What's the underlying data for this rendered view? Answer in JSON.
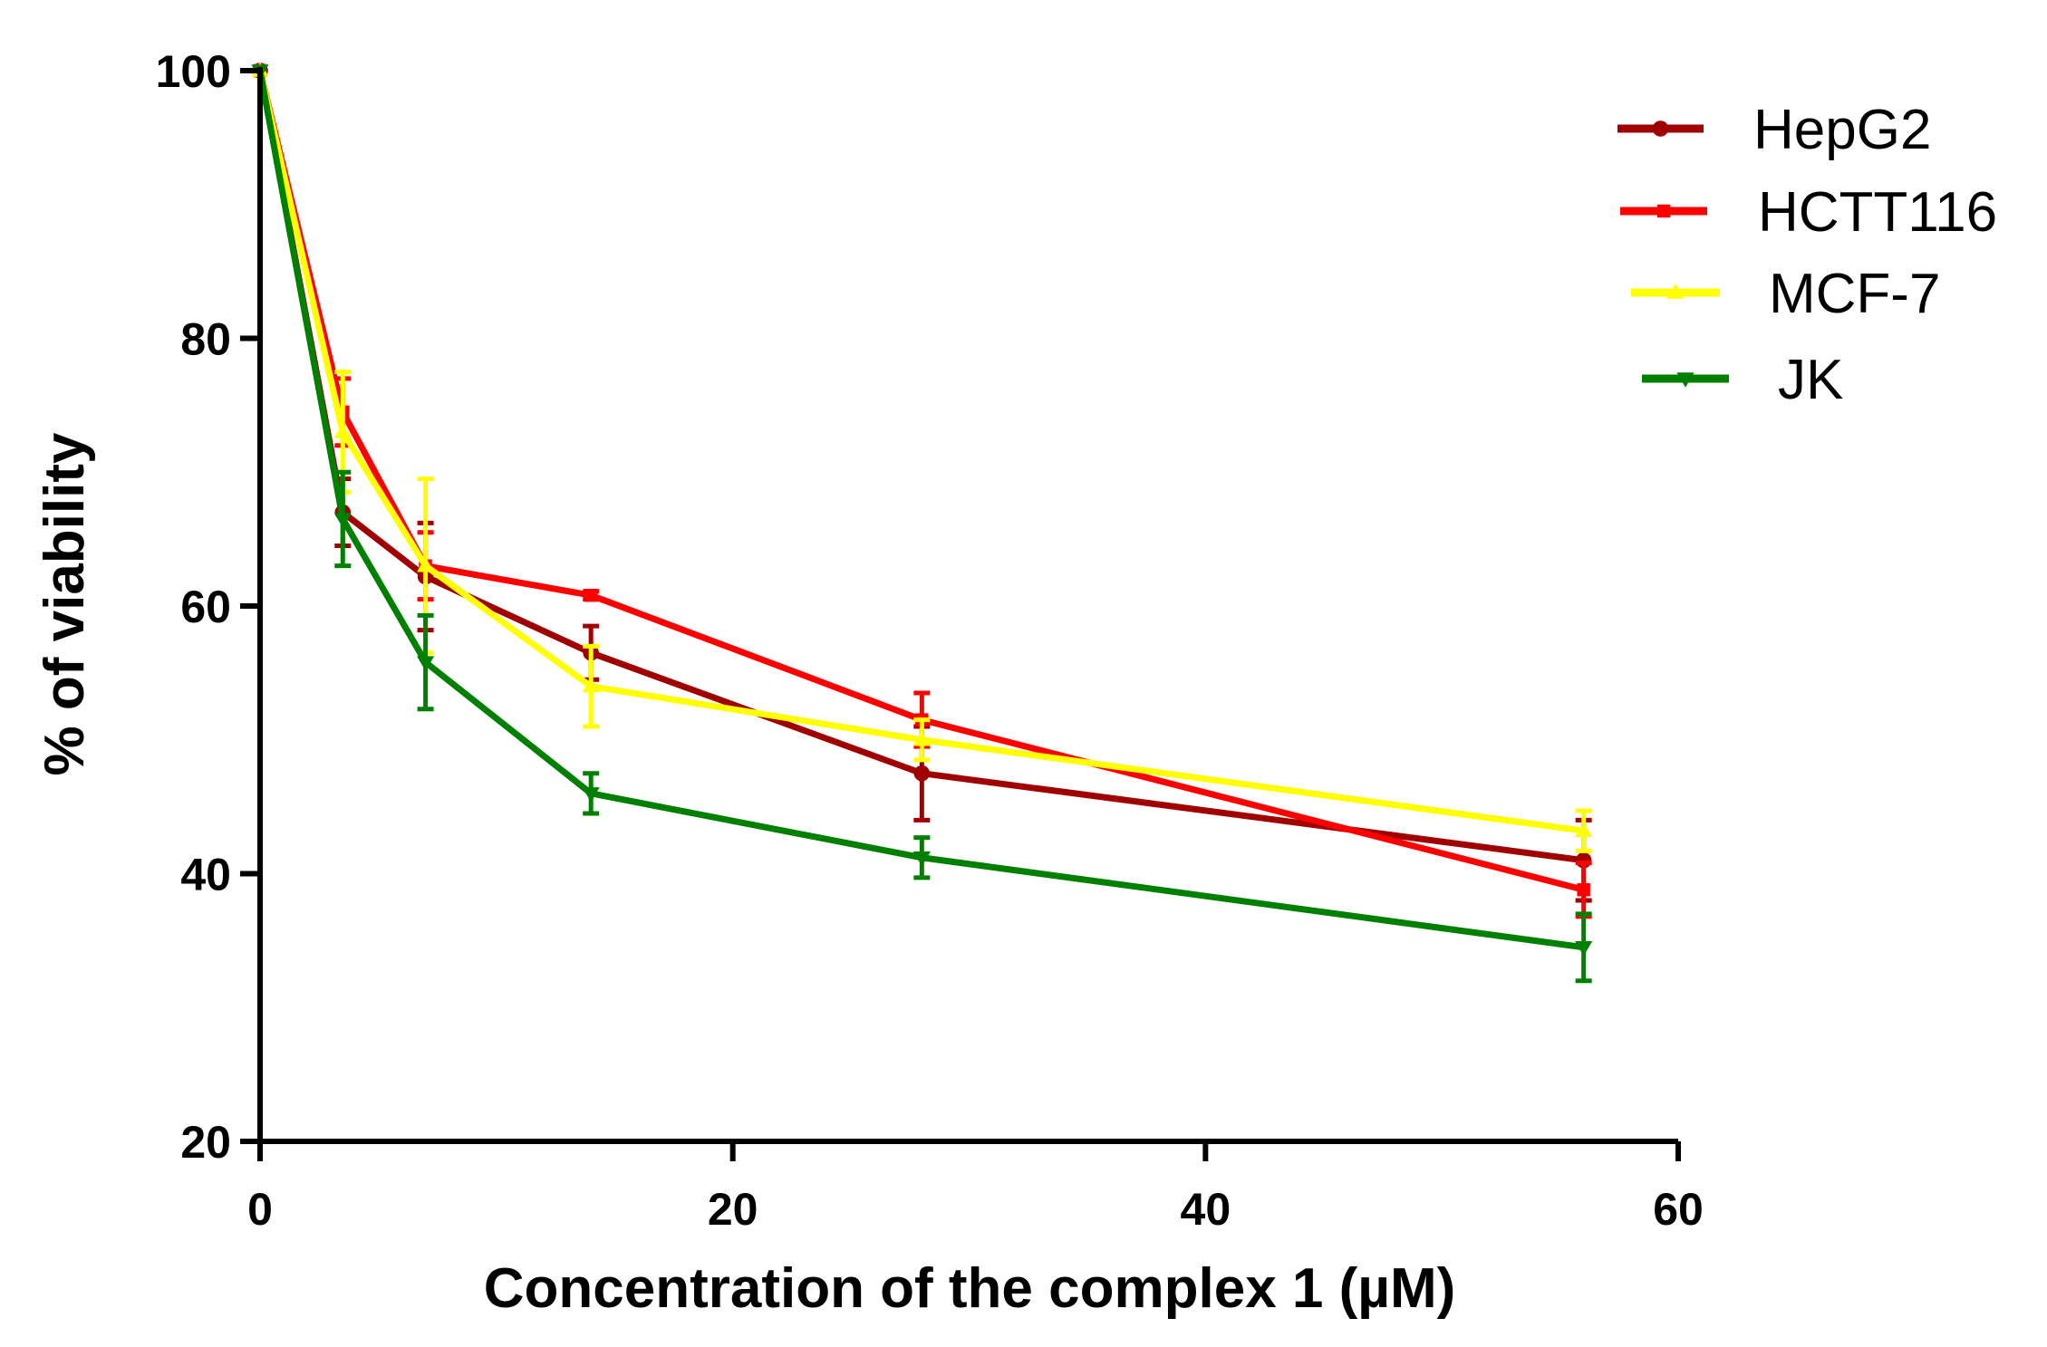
{
  "chart_data": {
    "type": "line",
    "title": "",
    "xlabel": "Concentration of the complex 1 (µM)",
    "ylabel": "% of viability",
    "xlim": [
      0,
      60
    ],
    "ylim": [
      20,
      100
    ],
    "xticks": [
      0,
      20,
      40,
      60
    ],
    "yticks": [
      20,
      40,
      60,
      80,
      100
    ],
    "xtick_labels": [
      "0",
      "20",
      "40",
      "60"
    ],
    "ytick_labels": [
      "20",
      "40",
      "60",
      "80",
      "100"
    ],
    "grid": false,
    "legend_position": "top-right",
    "x": [
      0,
      3.5,
      7,
      14,
      28,
      56
    ],
    "series": [
      {
        "name": "HepG2",
        "color": "#A00000",
        "marker": "circle",
        "values": [
          100,
          67.0,
          62.2,
          56.5,
          47.5,
          41.0
        ],
        "errors": [
          0,
          2.5,
          4.0,
          2.0,
          3.5,
          3.0
        ]
      },
      {
        "name": "HCTT116",
        "color": "#FF0000",
        "marker": "square",
        "values": [
          100,
          74.5,
          63.0,
          60.8,
          51.5,
          38.8
        ],
        "errors": [
          0,
          2.5,
          2.5,
          0.3,
          2.0,
          2.0
        ]
      },
      {
        "name": "MCF-7",
        "color": "#FFFF00",
        "marker": "triangle-up",
        "values": [
          100,
          73.0,
          63.0,
          54.0,
          50.0,
          43.2
        ],
        "errors": [
          0,
          4.5,
          6.5,
          3.0,
          1.5,
          1.5
        ]
      },
      {
        "name": "JK",
        "color": "#008000",
        "marker": "triangle-down",
        "values": [
          100,
          66.5,
          55.8,
          46.0,
          41.2,
          34.5
        ],
        "errors": [
          0,
          3.5,
          3.5,
          1.5,
          1.5,
          2.5
        ]
      }
    ]
  }
}
